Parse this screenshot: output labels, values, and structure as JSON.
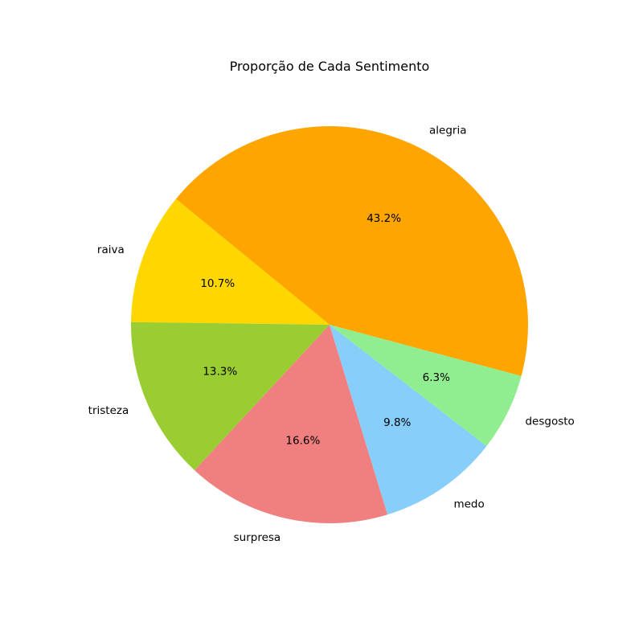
{
  "chart_data": {
    "type": "pie",
    "title": "Proporção de Cada Sentimento",
    "slices": [
      {
        "label": "alegria",
        "value": 43.2,
        "pct_label": "43.2%",
        "color": "#FFA500"
      },
      {
        "label": "raiva",
        "value": 10.7,
        "pct_label": "10.7%",
        "color": "#FFD700"
      },
      {
        "label": "tristeza",
        "value": 13.3,
        "pct_label": "13.3%",
        "color": "#9ACD32"
      },
      {
        "label": "surpresa",
        "value": 16.6,
        "pct_label": "16.6%",
        "color": "#F08080"
      },
      {
        "label": "medo",
        "value": 9.8,
        "pct_label": "9.8%",
        "color": "#87CEFA"
      },
      {
        "label": "desgosto",
        "value": 6.3,
        "pct_label": "6.3%",
        "color": "#90EE90"
      }
    ],
    "start_angle_deg": -15,
    "direction": "counterclockwise",
    "legend": "none"
  }
}
